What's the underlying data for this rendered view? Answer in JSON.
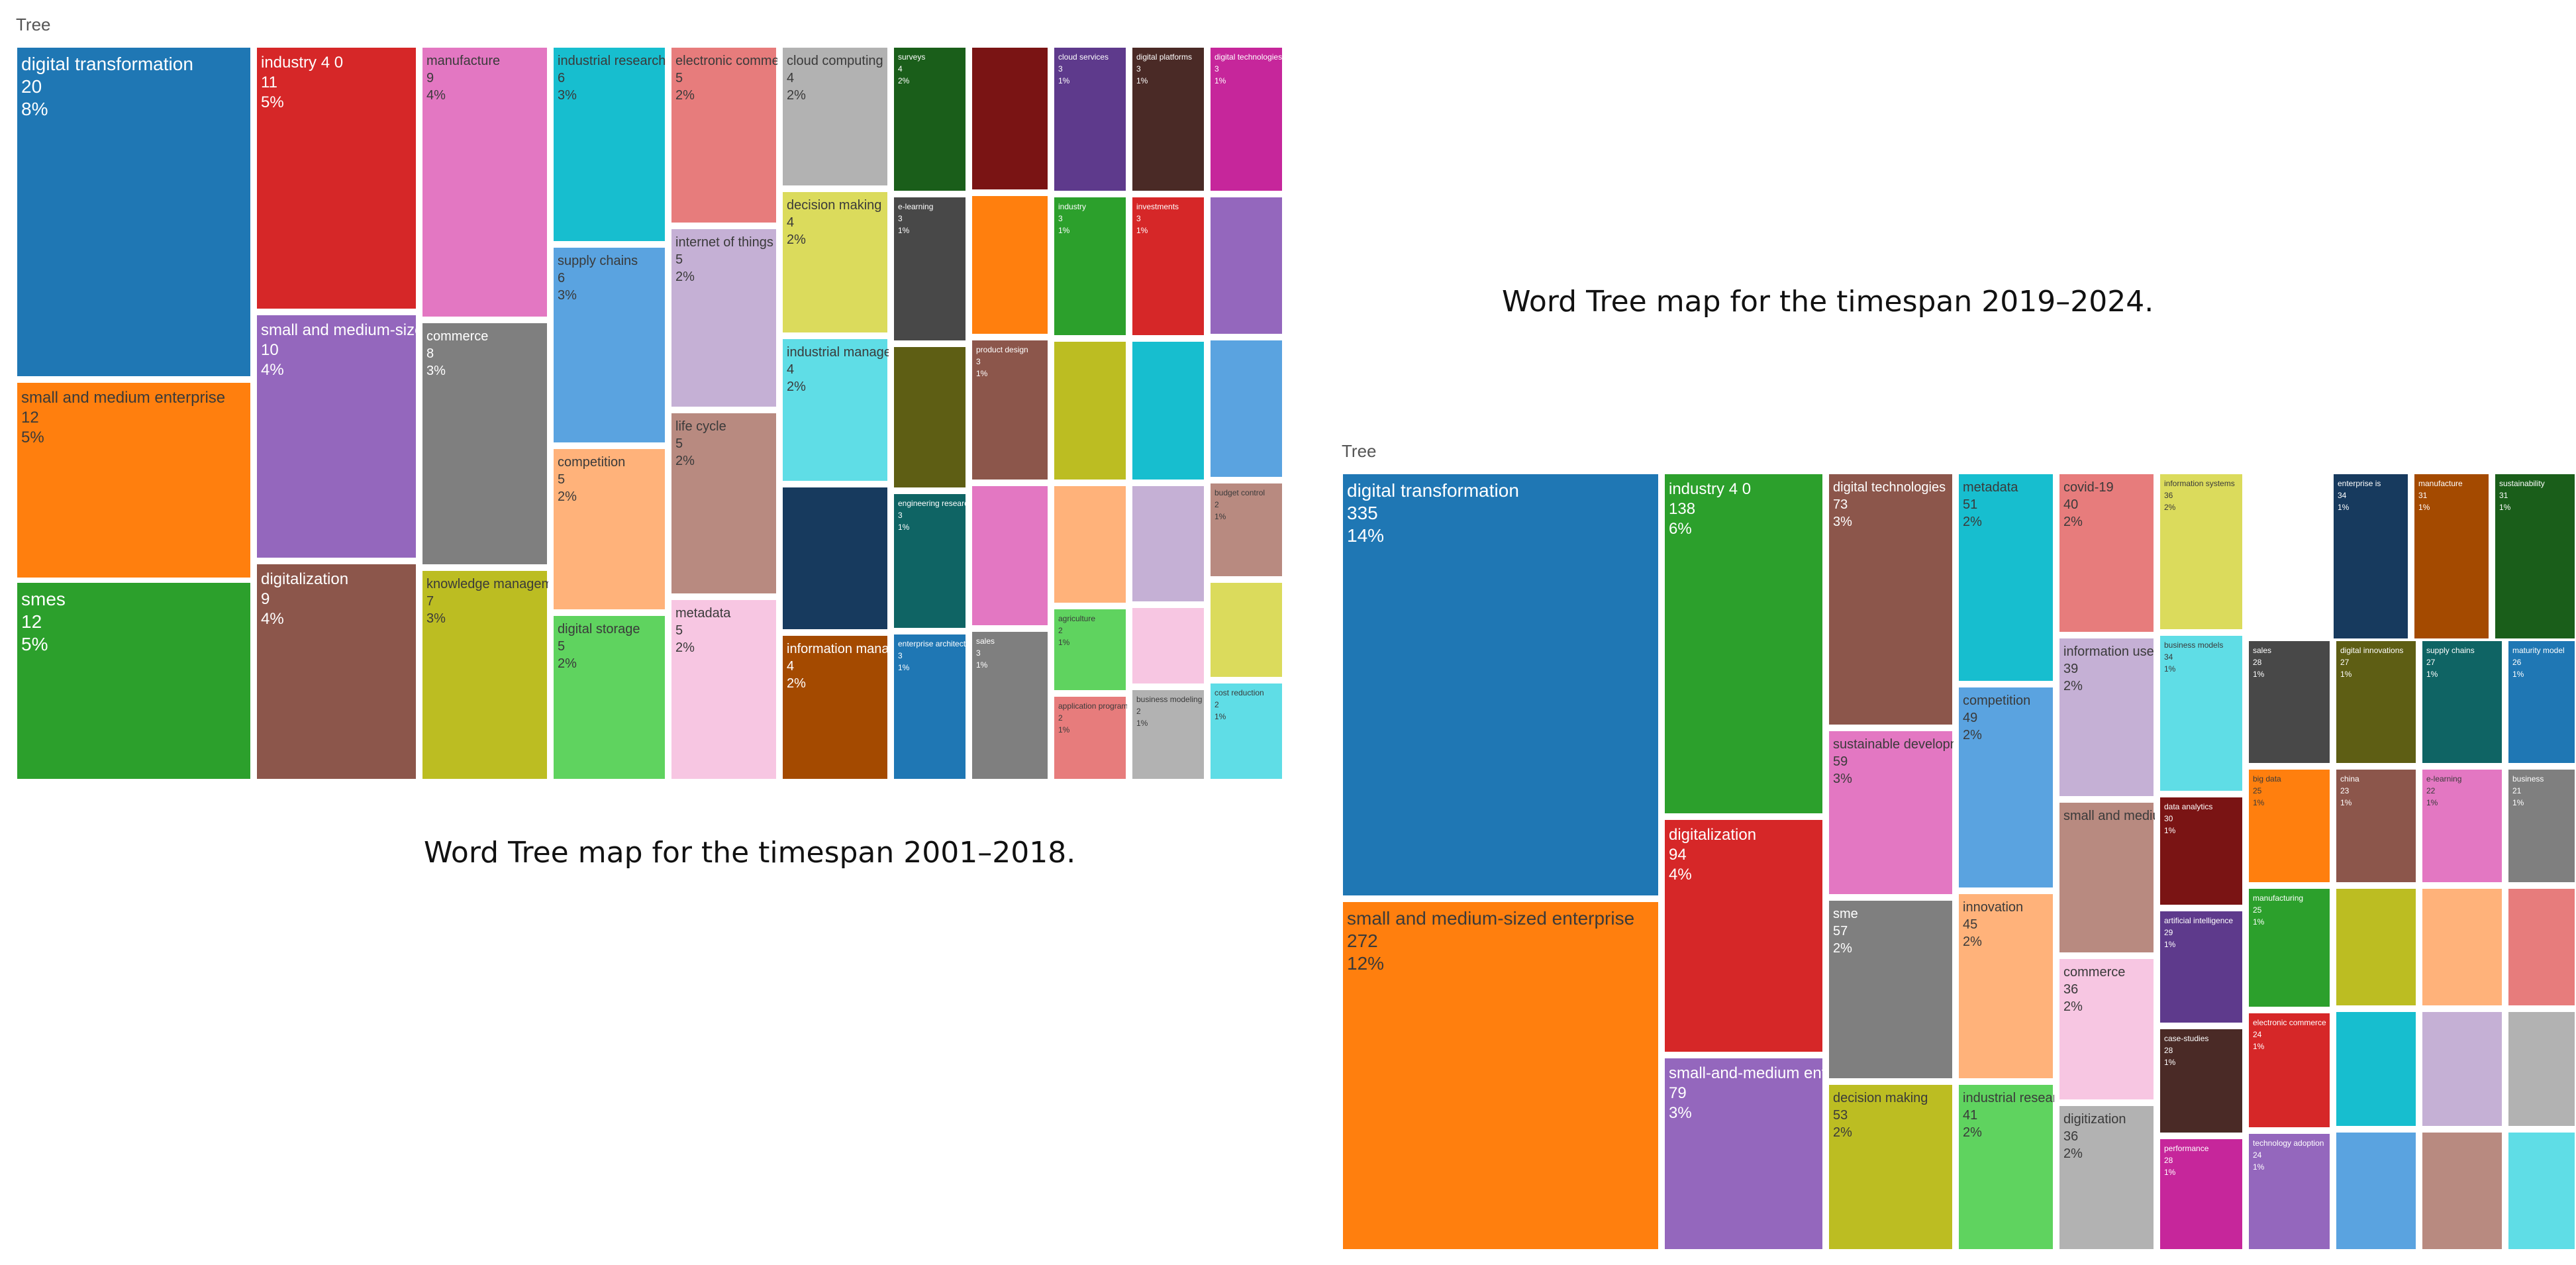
{
  "captions": {
    "left": "Word Tree map for the timespan 2001–2018.",
    "right": "Word Tree map for the timespan 2019–2024."
  },
  "panel_labels": {
    "left": "Tree",
    "right": "Tree"
  },
  "chart_data": [
    {
      "type": "treemap",
      "title": "",
      "caption": "Word Tree map for the timespan 2001–2018.",
      "items": [
        {
          "label": "digital transformation",
          "value": 20,
          "pct": "8%",
          "color": "#1f77b4"
        },
        {
          "label": "small and medium enterprise",
          "value": 12,
          "pct": "5%",
          "color": "#ff7f0e"
        },
        {
          "label": "smes",
          "value": 12,
          "pct": "5%",
          "color": "#2ca02c"
        },
        {
          "label": "industry 4 0",
          "value": 11,
          "pct": "5%",
          "color": "#d62728"
        },
        {
          "label": "small and medium-sized enterprise",
          "value": 10,
          "pct": "4%",
          "color": "#9467bd"
        },
        {
          "label": "digitalization",
          "value": 9,
          "pct": "4%",
          "color": "#8c564b"
        },
        {
          "label": "manufacture",
          "value": 9,
          "pct": "4%",
          "color": "#e377c2"
        },
        {
          "label": "commerce",
          "value": 8,
          "pct": "3%",
          "color": "#7f7f7f"
        },
        {
          "label": "knowledge management",
          "value": 7,
          "pct": "3%",
          "color": "#bcbd22"
        },
        {
          "label": "industrial research",
          "value": 6,
          "pct": "3%",
          "color": "#17becf"
        },
        {
          "label": "supply chains",
          "value": 6,
          "pct": "3%",
          "color": "#5aa3e0"
        },
        {
          "label": "competition",
          "value": 5,
          "pct": "2%",
          "color": "#ffb27a"
        },
        {
          "label": "digital storage",
          "value": 5,
          "pct": "2%",
          "color": "#5fd35f"
        },
        {
          "label": "electronic commerce",
          "value": 5,
          "pct": "2%",
          "color": "#e77c7c"
        },
        {
          "label": "internet of things",
          "value": 5,
          "pct": "2%",
          "color": "#c5b0d5"
        },
        {
          "label": "life cycle",
          "value": 5,
          "pct": "2%",
          "color": "#b88a80"
        },
        {
          "label": "metadata",
          "value": 5,
          "pct": "2%",
          "color": "#f7c6e2"
        },
        {
          "label": "cloud computing",
          "value": 4,
          "pct": "2%",
          "color": "#b2b2b2"
        },
        {
          "label": "decision making",
          "value": 4,
          "pct": "2%",
          "color": "#dbdb5c"
        },
        {
          "label": "industrial management",
          "value": 4,
          "pct": "2%",
          "color": "#5fdde6"
        },
        {
          "label": "",
          "value": null,
          "pct": "",
          "color": "#173a5e"
        },
        {
          "label": "information management",
          "value": 4,
          "pct": "2%",
          "color": "#a44a00"
        },
        {
          "label": "surveys",
          "value": 4,
          "pct": "2%",
          "color": "#1a5e1a"
        },
        {
          "label": "e-learning",
          "value": 3,
          "pct": "1%",
          "color": "#484848"
        },
        {
          "label": "",
          "value": null,
          "pct": "",
          "color": "#5e5e14"
        },
        {
          "label": "engineering research",
          "value": 3,
          "pct": "1%",
          "color": "#0f6464"
        },
        {
          "label": "enterprise architecture",
          "value": 3,
          "pct": "1%",
          "color": "#1f77b4"
        },
        {
          "label": "",
          "value": null,
          "pct": "",
          "color": "#7a1414"
        },
        {
          "label": "",
          "value": null,
          "pct": "",
          "color": "#ff7f0e"
        },
        {
          "label": "product design",
          "value": 3,
          "pct": "1%",
          "color": "#8c564b"
        },
        {
          "label": "",
          "value": null,
          "pct": "",
          "color": "#e377c2"
        },
        {
          "label": "sales",
          "value": 3,
          "pct": "1%",
          "color": "#7f7f7f"
        },
        {
          "label": "cloud services",
          "value": 3,
          "pct": "1%",
          "color": "#5e3a8c"
        },
        {
          "label": "industry",
          "value": 3,
          "pct": "1%",
          "color": "#2ca02c"
        },
        {
          "label": "",
          "value": null,
          "pct": "",
          "color": "#bcbd22"
        },
        {
          "label": "",
          "value": null,
          "pct": "",
          "color": "#ffb27a"
        },
        {
          "label": "agriculture",
          "value": 2,
          "pct": "1%",
          "color": "#5fd35f"
        },
        {
          "label": "application programs",
          "value": 2,
          "pct": "1%",
          "color": "#e77c7c"
        },
        {
          "label": "digital platforms",
          "value": 3,
          "pct": "1%",
          "color": "#4a2a26"
        },
        {
          "label": "investments",
          "value": 3,
          "pct": "1%",
          "color": "#d62728"
        },
        {
          "label": "",
          "value": null,
          "pct": "",
          "color": "#17becf"
        },
        {
          "label": "",
          "value": null,
          "pct": "",
          "color": "#c5b0d5"
        },
        {
          "label": "",
          "value": null,
          "pct": "",
          "color": "#f7c6e2"
        },
        {
          "label": "business modeling",
          "value": 2,
          "pct": "1%",
          "color": "#b2b2b2"
        },
        {
          "label": "digital technologies",
          "value": 3,
          "pct": "1%",
          "color": "#c6269b"
        },
        {
          "label": "",
          "value": null,
          "pct": "",
          "color": "#9467bd"
        },
        {
          "label": "",
          "value": null,
          "pct": "",
          "color": "#5aa3e0"
        },
        {
          "label": "budget control",
          "value": 2,
          "pct": "1%",
          "color": "#b88a80"
        },
        {
          "label": "",
          "value": null,
          "pct": "",
          "color": "#dbdb5c"
        },
        {
          "label": "cost reduction",
          "value": 2,
          "pct": "1%",
          "color": "#5fdde6"
        }
      ]
    },
    {
      "type": "treemap",
      "title": "",
      "caption": "Word Tree map for the timespan 2019–2024.",
      "items": [
        {
          "label": "digital transformation",
          "value": 335,
          "pct": "14%",
          "color": "#1f77b4"
        },
        {
          "label": "small and medium-sized enterprise",
          "value": 272,
          "pct": "12%",
          "color": "#ff7f0e"
        },
        {
          "label": "industry 4 0",
          "value": 138,
          "pct": "6%",
          "color": "#2ca02c"
        },
        {
          "label": "digitalization",
          "value": 94,
          "pct": "4%",
          "color": "#d62728"
        },
        {
          "label": "small-and-medium enterprise",
          "value": 79,
          "pct": "3%",
          "color": "#9467bd"
        },
        {
          "label": "digital technologies",
          "value": 73,
          "pct": "3%",
          "color": "#8c564b"
        },
        {
          "label": "sustainable development",
          "value": 59,
          "pct": "3%",
          "color": "#e377c2"
        },
        {
          "label": "sme",
          "value": 57,
          "pct": "2%",
          "color": "#7f7f7f"
        },
        {
          "label": "decision making",
          "value": 53,
          "pct": "2%",
          "color": "#bcbd22"
        },
        {
          "label": "metadata",
          "value": 51,
          "pct": "2%",
          "color": "#17becf"
        },
        {
          "label": "competition",
          "value": 49,
          "pct": "2%",
          "color": "#5aa3e0"
        },
        {
          "label": "innovation",
          "value": 45,
          "pct": "2%",
          "color": "#ffb27a"
        },
        {
          "label": "industrial research",
          "value": 41,
          "pct": "2%",
          "color": "#5fd35f"
        },
        {
          "label": "covid-19",
          "value": 40,
          "pct": "2%",
          "color": "#e77c7c"
        },
        {
          "label": "information use",
          "value": 39,
          "pct": "2%",
          "color": "#c5b0d5"
        },
        {
          "label": "small and medium enterprise",
          "value": null,
          "pct": "",
          "color": "#b88a80"
        },
        {
          "label": "commerce",
          "value": 36,
          "pct": "2%",
          "color": "#f7c6e2"
        },
        {
          "label": "digitization",
          "value": 36,
          "pct": "2%",
          "color": "#b2b2b2"
        },
        {
          "label": "information systems",
          "value": 36,
          "pct": "2%",
          "color": "#dbdb5c"
        },
        {
          "label": "business models",
          "value": 34,
          "pct": "1%",
          "color": "#5fdde6"
        },
        {
          "label": "data analytics",
          "value": 30,
          "pct": "1%",
          "color": "#7a1414"
        },
        {
          "label": "artificial intelligence",
          "value": 29,
          "pct": "1%",
          "color": "#5e3a8c"
        },
        {
          "label": "case-studies",
          "value": 28,
          "pct": "1%",
          "color": "#4a2a26"
        },
        {
          "label": "performance",
          "value": 28,
          "pct": "1%",
          "color": "#c6269b"
        },
        {
          "label": "enterprise is",
          "value": 34,
          "pct": "1%",
          "color": "#173a5e"
        },
        {
          "label": "manufacture",
          "value": 31,
          "pct": "1%",
          "color": "#a44a00"
        },
        {
          "label": "sustainability",
          "value": 31,
          "pct": "1%",
          "color": "#1a5e1a"
        },
        {
          "label": "sales",
          "value": 28,
          "pct": "1%",
          "color": "#484848"
        },
        {
          "label": "digital innovations",
          "value": 27,
          "pct": "1%",
          "color": "#5e5e14"
        },
        {
          "label": "supply chains",
          "value": 27,
          "pct": "1%",
          "color": "#0f6464"
        },
        {
          "label": "maturity model",
          "value": 26,
          "pct": "1%",
          "color": "#1f77b4"
        },
        {
          "label": "big data",
          "value": 25,
          "pct": "1%",
          "color": "#ff7f0e"
        },
        {
          "label": "china",
          "value": 23,
          "pct": "1%",
          "color": "#8c564b"
        },
        {
          "label": "e-learning",
          "value": 22,
          "pct": "1%",
          "color": "#e377c2"
        },
        {
          "label": "business",
          "value": 21,
          "pct": "1%",
          "color": "#7f7f7f"
        },
        {
          "label": "manufacturing",
          "value": 25,
          "pct": "1%",
          "color": "#2ca02c"
        },
        {
          "label": "electronic commerce",
          "value": 24,
          "pct": "1%",
          "color": "#d62728"
        },
        {
          "label": "technology adoption",
          "value": 24,
          "pct": "1%",
          "color": "#9467bd"
        },
        {
          "label": "",
          "value": null,
          "pct": "",
          "color": "#bcbd22"
        },
        {
          "label": "",
          "value": null,
          "pct": "",
          "color": "#ffb27a"
        },
        {
          "label": "",
          "value": null,
          "pct": "",
          "color": "#5fd35f"
        },
        {
          "label": "",
          "value": null,
          "pct": "",
          "color": "#e77c7c"
        },
        {
          "label": "",
          "value": null,
          "pct": "",
          "color": "#17becf"
        },
        {
          "label": "",
          "value": null,
          "pct": "",
          "color": "#c5b0d5"
        },
        {
          "label": "",
          "value": null,
          "pct": "",
          "color": "#f7c6e2"
        },
        {
          "label": "",
          "value": null,
          "pct": "",
          "color": "#b2b2b2"
        },
        {
          "label": "",
          "value": null,
          "pct": "",
          "color": "#5aa3e0"
        },
        {
          "label": "",
          "value": null,
          "pct": "",
          "color": "#b88a80"
        },
        {
          "label": "",
          "value": null,
          "pct": "",
          "color": "#dbdb5c"
        },
        {
          "label": "",
          "value": null,
          "pct": "",
          "color": "#5fdde6"
        }
      ]
    }
  ]
}
